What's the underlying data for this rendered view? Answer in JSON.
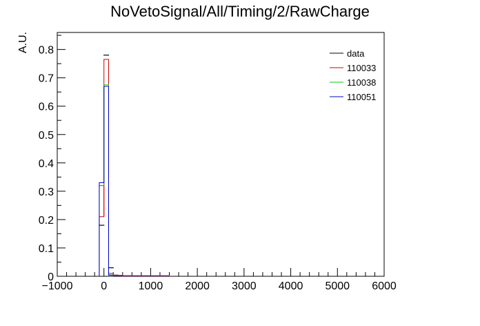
{
  "chart_data": {
    "type": "histogram",
    "title": "NoVetoSignal/All/Timing/2/RawCharge",
    "xlabel": "",
    "ylabel": "A.U.",
    "xlim": [
      -1000,
      6000
    ],
    "ylim": [
      0,
      0.86
    ],
    "bin_width": 100,
    "x_ticks": [
      -1000,
      0,
      1000,
      2000,
      3000,
      4000,
      5000,
      6000
    ],
    "x_tick_labels": [
      "−1000",
      "0",
      "1000",
      "2000",
      "3000",
      "4000",
      "5000",
      "6000"
    ],
    "y_ticks": [
      0,
      0.1,
      0.2,
      0.3,
      0.4,
      0.5,
      0.6,
      0.7,
      0.8
    ],
    "y_tick_labels": [
      "0",
      "0.1",
      "0.2",
      "0.3",
      "0.4",
      "0.5",
      "0.6",
      "0.7",
      "0.8"
    ],
    "legend_position": "top-right",
    "series": [
      {
        "name": "data",
        "color": "#000000",
        "style": "markers",
        "bins": [
          {
            "x": -50,
            "y": 0.18
          },
          {
            "x": 50,
            "y": 0.78
          },
          {
            "x": 150,
            "y": 0.03
          },
          {
            "x": 250,
            "y": 0.004
          },
          {
            "x": 350,
            "y": 0.002
          }
        ]
      },
      {
        "name": "110033",
        "color": "#cc0000",
        "style": "step",
        "bins": [
          {
            "x": -50,
            "y": 0.21,
            "y_max": 0.32
          },
          {
            "x": 50,
            "y": 0.765
          },
          {
            "x": 150,
            "y": 0.01
          },
          {
            "x": 250,
            "y": 0.004
          },
          {
            "x": 350,
            "y": 0.003
          },
          {
            "x": 450,
            "y": 0.002
          },
          {
            "x": 550,
            "y": 0.002
          }
        ]
      },
      {
        "name": "110038",
        "color": "#00cc00",
        "style": "step",
        "bins": [
          {
            "x": -50,
            "y": 0.32
          },
          {
            "x": 50,
            "y": 0.675
          },
          {
            "x": 150,
            "y": 0.005
          },
          {
            "x": 250,
            "y": 0.003
          }
        ]
      },
      {
        "name": "110051",
        "color": "#0000cc",
        "style": "step",
        "bins": [
          {
            "x": -50,
            "y": 0.33
          },
          {
            "x": 50,
            "y": 0.67
          },
          {
            "x": 150,
            "y": 0.004
          },
          {
            "x": 250,
            "y": 0.002
          }
        ]
      },
      {
        "name": "",
        "color": "#cc00cc",
        "style": "step",
        "bins": [
          {
            "x": 250,
            "y": 0.003
          },
          {
            "x": 350,
            "y": 0.003
          },
          {
            "x": 450,
            "y": 0.002
          },
          {
            "x": 550,
            "y": 0.002
          },
          {
            "x": 650,
            "y": 0.002
          },
          {
            "x": 750,
            "y": 0.002
          },
          {
            "x": 850,
            "y": 0.002
          },
          {
            "x": 950,
            "y": 0.002
          },
          {
            "x": 1050,
            "y": 0.002
          },
          {
            "x": 1150,
            "y": 0.002
          },
          {
            "x": 1250,
            "y": 0.002
          },
          {
            "x": 1350,
            "y": 0.002
          }
        ]
      }
    ]
  }
}
